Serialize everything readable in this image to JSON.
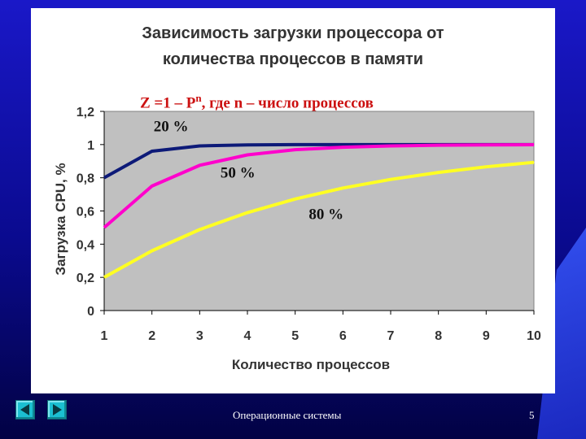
{
  "slide": {
    "footer": "Операционные системы",
    "page_number": "5",
    "formula_main": "Z =1 – P",
    "formula_sup": "n",
    "formula_rest": ", где n – число процессов",
    "colors": {
      "background": "#1010b0",
      "panel": "#ffffff",
      "plot_area": "#c0c0c0",
      "formula": "#cc1111"
    }
  },
  "chart_data": {
    "type": "line",
    "title_line1": "Зависимость загрузки процессора от",
    "title_line2": "количества процессов в памяти",
    "xlabel": "Количество процессов",
    "ylabel": "Загрузка CPU, %",
    "x": [
      1,
      2,
      3,
      4,
      5,
      6,
      7,
      8,
      9,
      10
    ],
    "ylim": [
      0,
      1.2
    ],
    "y_ticks": [
      "0",
      "0,2",
      "0,4",
      "0,6",
      "0,8",
      "1",
      "1,2"
    ],
    "x_ticks": [
      "1",
      "2",
      "3",
      "4",
      "5",
      "6",
      "7",
      "8",
      "9",
      "10"
    ],
    "grid": false,
    "series": [
      {
        "label": "20 %",
        "color": "#0d1a78",
        "values": [
          0.8,
          0.96,
          0.992,
          0.998,
          1.0,
          1.0,
          1.0,
          1.0,
          1.0,
          1.0
        ]
      },
      {
        "label": "50 %",
        "color": "#ff00cc",
        "values": [
          0.5,
          0.75,
          0.875,
          0.938,
          0.969,
          0.984,
          0.992,
          0.996,
          0.998,
          0.999
        ]
      },
      {
        "label": "80 %",
        "color": "#ffff22",
        "values": [
          0.2,
          0.36,
          0.488,
          0.59,
          0.672,
          0.738,
          0.79,
          0.832,
          0.866,
          0.893
        ]
      }
    ]
  }
}
